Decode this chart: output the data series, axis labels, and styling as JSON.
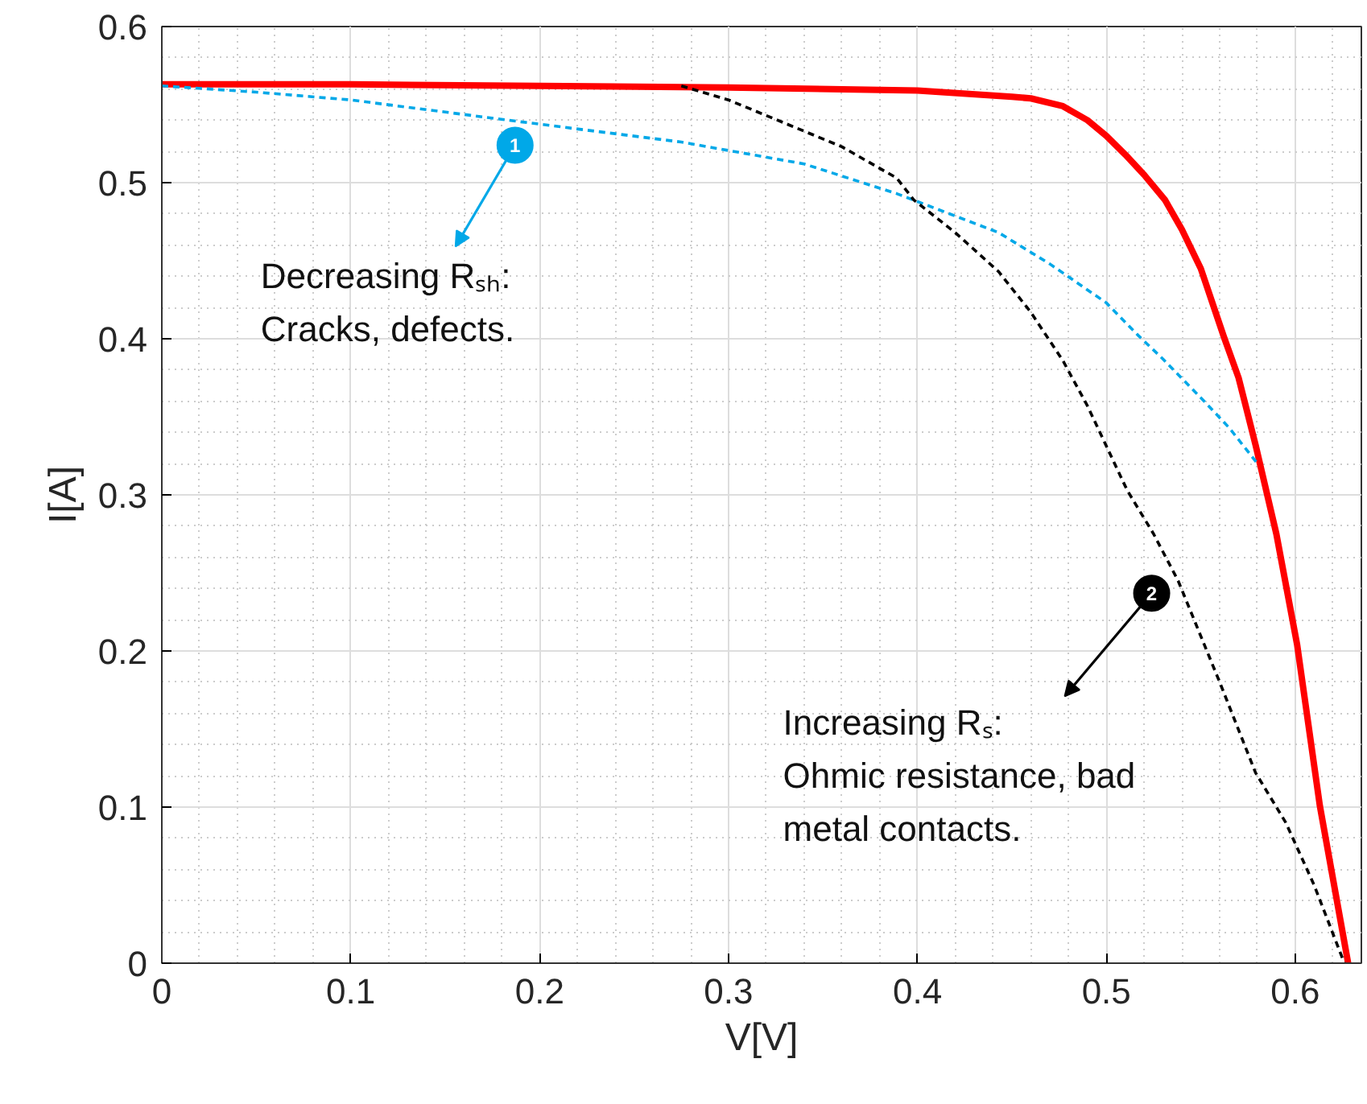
{
  "chart_data": {
    "type": "line",
    "xlabel": "V[V]",
    "ylabel": "I[A]",
    "xlim": [
      0,
      0.635
    ],
    "ylim": [
      0,
      0.6
    ],
    "xticks": [
      0,
      0.1,
      0.2,
      0.3,
      0.4,
      0.5,
      0.6
    ],
    "yticks": [
      0,
      0.1,
      0.2,
      0.3,
      0.4,
      0.5,
      0.6
    ],
    "grid": true,
    "marker": "none",
    "series": [
      {
        "color": "#00a8e8",
        "line_style": "dashed",
        "x": [
          0,
          0.05,
          0.1,
          0.19,
          0.275,
          0.34,
          0.389,
          0.443,
          0.47,
          0.5,
          0.517,
          0.53,
          0.551,
          0.565,
          0.58
        ],
        "values": [
          0.562,
          0.558,
          0.553,
          0.539,
          0.526,
          0.512,
          0.493,
          0.468,
          0.448,
          0.423,
          0.402,
          0.387,
          0.361,
          0.343,
          0.32
        ]
      },
      {
        "color": "#000000",
        "line_style": "dashed",
        "x": [
          0.275,
          0.3,
          0.332,
          0.36,
          0.389,
          0.398,
          0.42,
          0.443,
          0.46,
          0.477,
          0.49,
          0.511,
          0.525,
          0.538,
          0.56,
          0.579,
          0.595,
          0.61,
          0.626
        ],
        "values": [
          0.562,
          0.553,
          0.537,
          0.523,
          0.503,
          0.489,
          0.468,
          0.443,
          0.417,
          0.386,
          0.357,
          0.303,
          0.275,
          0.245,
          0.18,
          0.122,
          0.09,
          0.05,
          0
        ]
      },
      {
        "color": "#ff0000",
        "line_style": "solid",
        "x": [
          0,
          0.1,
          0.2,
          0.3,
          0.4,
          0.45,
          0.46,
          0.477,
          0.49,
          0.5,
          0.51,
          0.52,
          0.531,
          0.54,
          0.55,
          0.562,
          0.57,
          0.579,
          0.59,
          0.601,
          0.613,
          0.628
        ],
        "values": [
          0.563,
          0.563,
          0.562,
          0.561,
          0.559,
          0.555,
          0.554,
          0.549,
          0.54,
          0.53,
          0.518,
          0.505,
          0.489,
          0.47,
          0.445,
          0.402,
          0.375,
          0.332,
          0.275,
          0.204,
          0.101,
          0
        ]
      }
    ],
    "annotations": [
      {
        "text": "1",
        "x": 0.187,
        "y": 0.524
      },
      "Decreasing Rₛₕ:\nCracks, defects.",
      {
        "text": "2",
        "x": 0.524,
        "y": 0.237
      },
      "Increasing Rₛ:\nOhmic resistance, bad\nmetal contacts."
    ]
  }
}
